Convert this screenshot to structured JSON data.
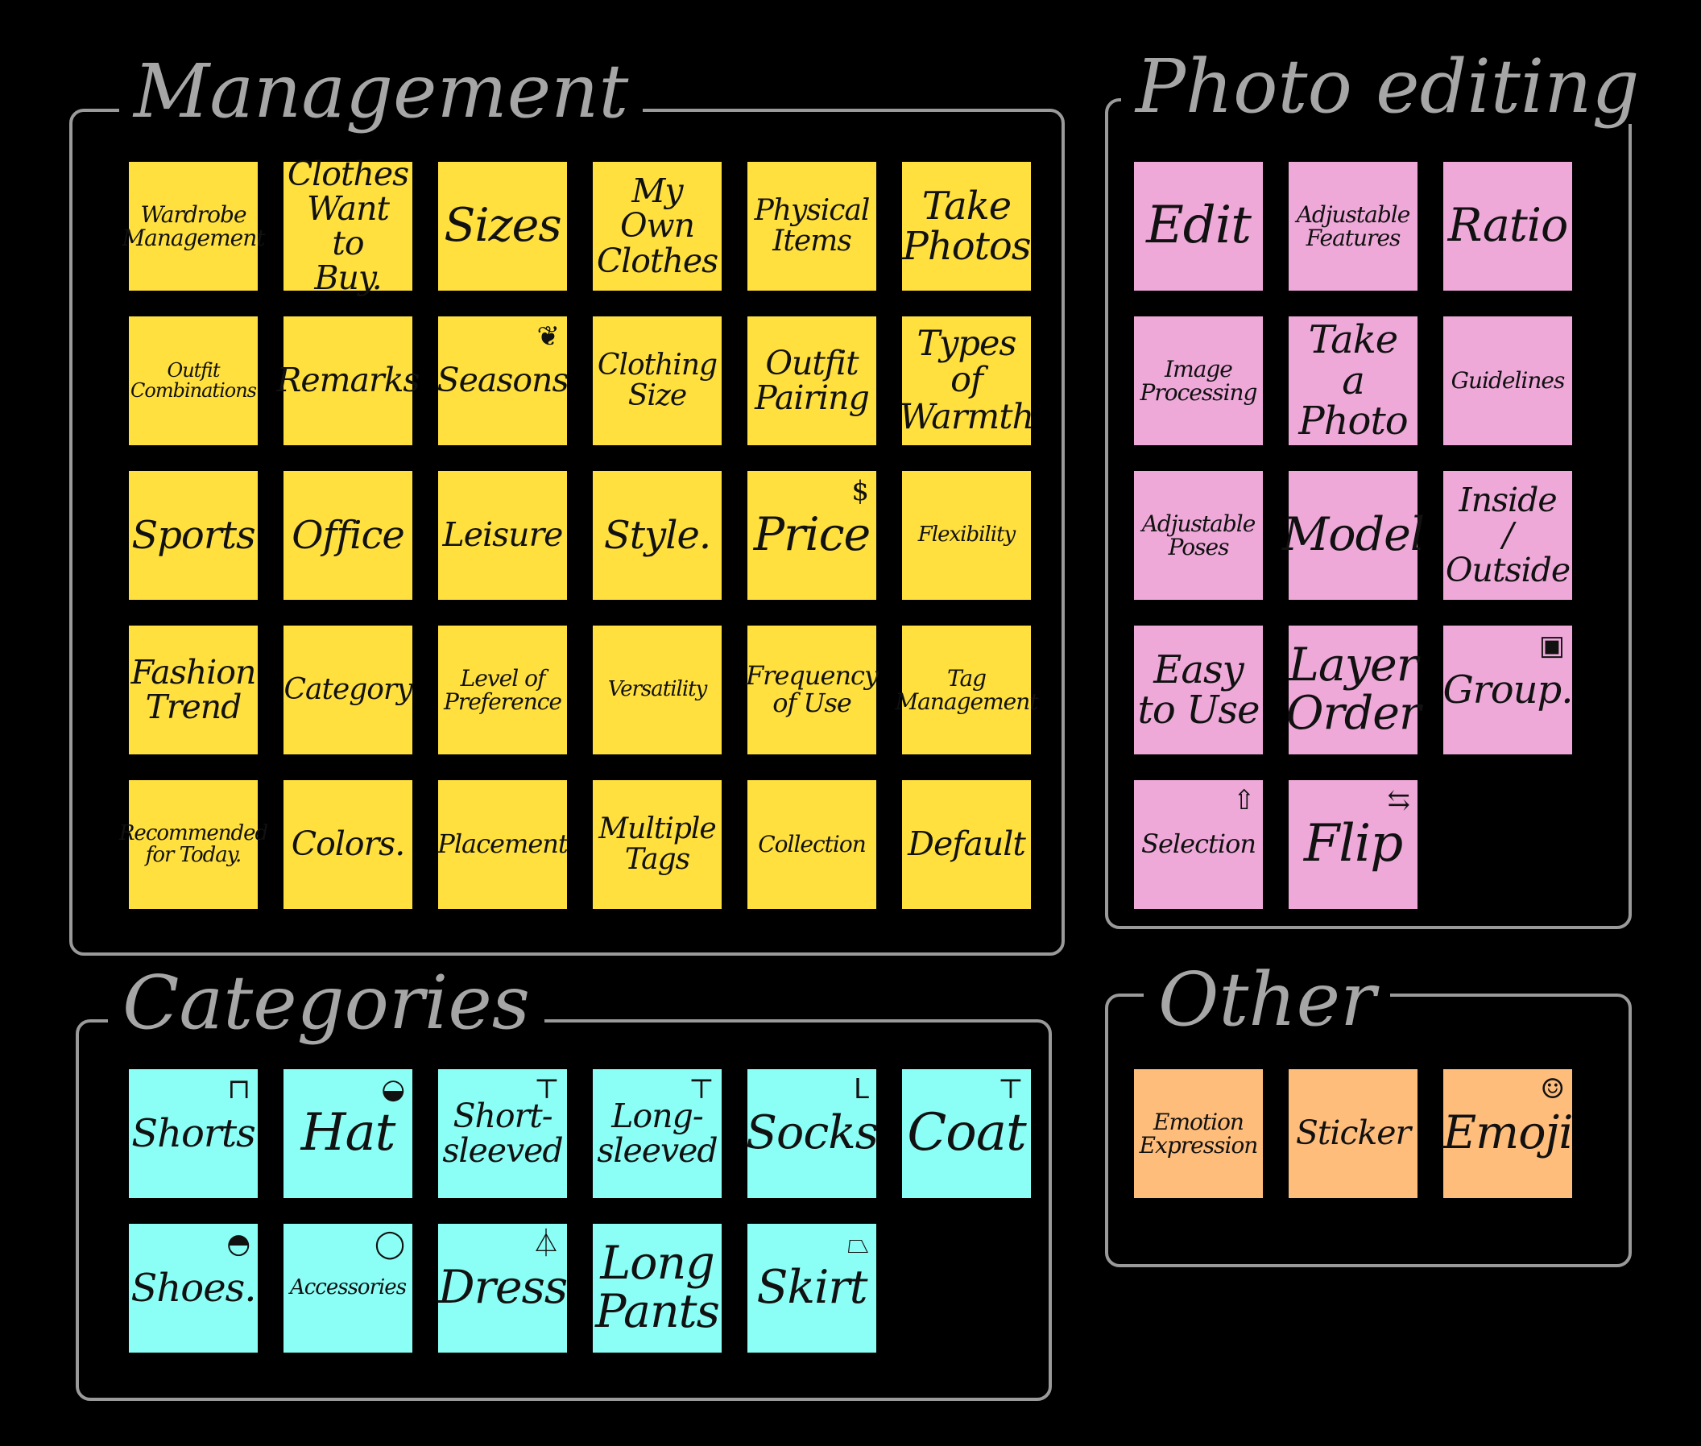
{
  "colors": {
    "management": "#FFE03E",
    "photo_editing": "#EEA9D9",
    "categories": "#8BFFF6",
    "other": "#FFBD7B",
    "frame": "#9A9A9A",
    "background": "#000000"
  },
  "groups": {
    "management": {
      "title": "Management",
      "notes": [
        {
          "label": "Wardrobe\nManagement"
        },
        {
          "label": "Clothes\nWant to\nBuy."
        },
        {
          "label": "Sizes"
        },
        {
          "label": "My Own\nClothes"
        },
        {
          "label": "Physical\nItems"
        },
        {
          "label": "Take\nPhotos"
        },
        {
          "label": "Outfit\nCombinations"
        },
        {
          "label": "Remarks"
        },
        {
          "label": "Seasons",
          "icon": "leaf-icon"
        },
        {
          "label": "Clothing\nSize"
        },
        {
          "label": "Outfit\nPairing"
        },
        {
          "label": "Types\nof\nWarmth"
        },
        {
          "label": "Sports"
        },
        {
          "label": "Office"
        },
        {
          "label": "Leisure"
        },
        {
          "label": "Style."
        },
        {
          "label": "Price",
          "icon": "coin-icon"
        },
        {
          "label": "Flexibility"
        },
        {
          "label": "Fashion\nTrend"
        },
        {
          "label": "Category"
        },
        {
          "label": "Level of\nPreference"
        },
        {
          "label": "Versatility"
        },
        {
          "label": "Frequency\nof Use"
        },
        {
          "label": "Tag\nManagement"
        },
        {
          "label": "Recommended\nfor Today."
        },
        {
          "label": "Colors."
        },
        {
          "label": "Placement"
        },
        {
          "label": "Multiple\nTags"
        },
        {
          "label": "Collection"
        },
        {
          "label": "Default"
        }
      ]
    },
    "photo_editing": {
      "title": "Photo editing",
      "notes": [
        {
          "label": "Edit"
        },
        {
          "label": "Adjustable\nFeatures"
        },
        {
          "label": "Ratio"
        },
        {
          "label": "Image\nProcessing"
        },
        {
          "label": "Take a\nPhoto"
        },
        {
          "label": "Guidelines"
        },
        {
          "label": "Adjustable\nPoses"
        },
        {
          "label": "Model"
        },
        {
          "label": "Inside\n/\nOutside"
        },
        {
          "label": "Easy\nto Use"
        },
        {
          "label": "Layer\nOrder"
        },
        {
          "label": "Group.",
          "icon": "group-icon"
        },
        {
          "label": "Selection",
          "icon": "cursor-icon"
        },
        {
          "label": "Flip",
          "icon": "flip-icon"
        }
      ]
    },
    "categories": {
      "title": "Categories",
      "notes": [
        {
          "label": "Shorts",
          "icon": "shorts-icon"
        },
        {
          "label": "Hat",
          "icon": "hat-icon"
        },
        {
          "label": "Short-\nsleeved",
          "icon": "tshirt-icon"
        },
        {
          "label": "Long-\nsleeved",
          "icon": "long-sleeve-icon"
        },
        {
          "label": "Socks",
          "icon": "socks-icon"
        },
        {
          "label": "Coat",
          "icon": "coat-icon"
        },
        {
          "label": "Shoes.",
          "icon": "shoe-icon"
        },
        {
          "label": "Accessories",
          "icon": "necklace-icon"
        },
        {
          "label": "Dress",
          "icon": "dress-icon"
        },
        {
          "label": "Long\nPants"
        },
        {
          "label": "Skirt",
          "icon": "skirt-icon"
        }
      ]
    },
    "other": {
      "title": "Other",
      "notes": [
        {
          "label": "Emotion\nExpression"
        },
        {
          "label": "Sticker"
        },
        {
          "label": "Emoji",
          "icon": "smiley-icon"
        }
      ]
    }
  }
}
